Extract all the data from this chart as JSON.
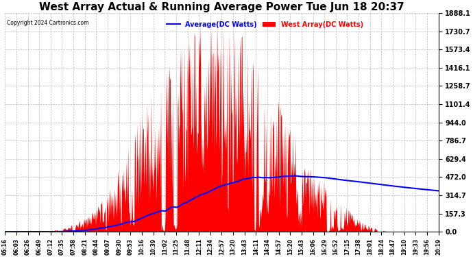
{
  "title": "West Array Actual & Running Average Power Tue Jun 18 20:37",
  "copyright": "Copyright 2024 Cartronics.com",
  "legend_labels": [
    "Average(DC Watts)",
    "West Array(DC Watts)"
  ],
  "legend_colors": [
    "blue",
    "red"
  ],
  "ylabel_right_values": [
    1888.1,
    1730.7,
    1573.4,
    1416.1,
    1258.7,
    1101.4,
    944.0,
    786.7,
    629.4,
    472.0,
    314.7,
    157.3,
    0.0
  ],
  "ymax": 1888.1,
  "ymin": 0.0,
  "background_color": "#ffffff",
  "plot_bg_color": "#ffffff",
  "grid_color": "#bbbbbb",
  "title_color": "#000000",
  "title_fontsize": 11,
  "bar_color": "#ff0000",
  "line_color": "blue",
  "x_tick_labels": [
    "05:16",
    "06:03",
    "06:26",
    "06:49",
    "07:12",
    "07:35",
    "07:58",
    "08:21",
    "08:44",
    "09:07",
    "09:30",
    "09:53",
    "10:16",
    "10:39",
    "11:02",
    "11:25",
    "11:48",
    "12:11",
    "12:34",
    "12:57",
    "13:20",
    "13:43",
    "14:11",
    "14:34",
    "14:57",
    "15:20",
    "15:43",
    "16:06",
    "16:29",
    "16:52",
    "17:15",
    "17:38",
    "18:01",
    "18:24",
    "18:47",
    "19:10",
    "19:33",
    "19:56",
    "20:19"
  ]
}
